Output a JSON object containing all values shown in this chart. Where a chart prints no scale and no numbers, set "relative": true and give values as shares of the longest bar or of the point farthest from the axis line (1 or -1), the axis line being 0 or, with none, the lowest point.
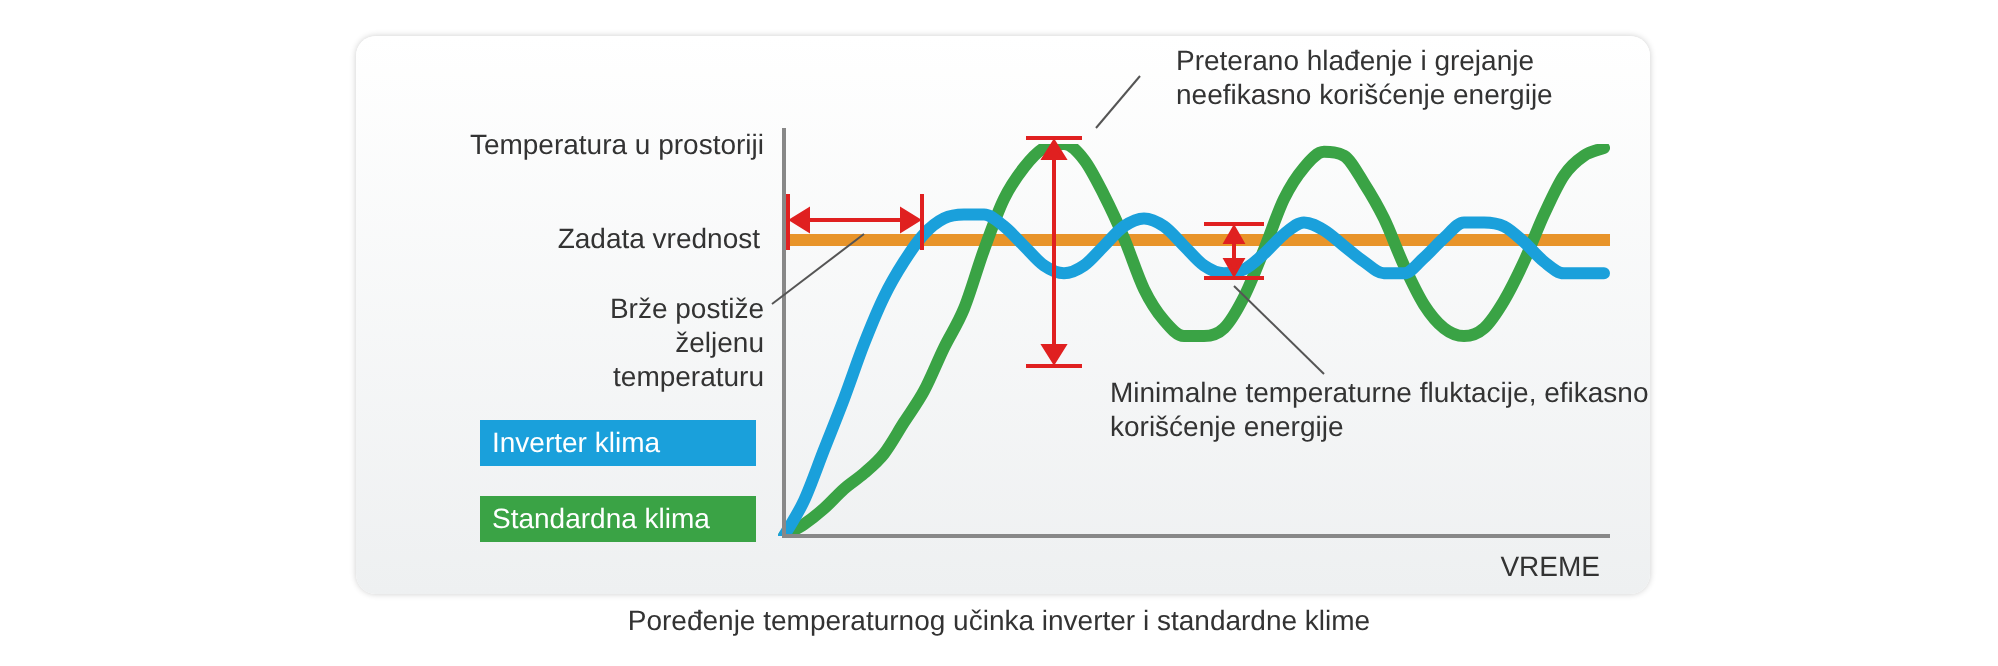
{
  "chart_data": {
    "type": "line",
    "title": "Poređenje temperaturnog učinka inverter i standardne klime",
    "ylabel": "Temperatura u prostoriji",
    "xlabel": "VREME",
    "relative": true,
    "legend": "left",
    "marker": "none",
    "categories": [
      null,
      null,
      null,
      null,
      null,
      null,
      null,
      null,
      null,
      null,
      null,
      null,
      null,
      null,
      null,
      null,
      null,
      null,
      null,
      null,
      null,
      null,
      null,
      null,
      null,
      null,
      null,
      null,
      null,
      null,
      null,
      null,
      null,
      null,
      null,
      null,
      null,
      null,
      null,
      null,
      null,
      null
    ],
    "series": [
      {
        "name": "Inverter klima",
        "color": "#1aa0db",
        "values": [
          0,
          0.09,
          0.22,
          0.35,
          0.49,
          0.61,
          0.7,
          0.77,
          0.81,
          0.82,
          0.82,
          0.79,
          0.74,
          0.69,
          0.67,
          0.69,
          0.74,
          0.79,
          0.81,
          0.79,
          0.74,
          0.69,
          0.67,
          0.68,
          0.72,
          0.77,
          0.8,
          0.78,
          0.74,
          0.7,
          0.67,
          0.67,
          0.71,
          0.76,
          0.8,
          0.8,
          0.79,
          0.75,
          0.7,
          0.67,
          0.67,
          0.67
        ]
      },
      {
        "name": "Standardna klima",
        "color": "#3aa345",
        "values": [
          0,
          0.03,
          0.07,
          0.12,
          0.16,
          0.21,
          0.29,
          0.37,
          0.48,
          0.58,
          0.73,
          0.86,
          0.94,
          0.99,
          1.0,
          0.96,
          0.87,
          0.76,
          0.63,
          0.55,
          0.51,
          0.51,
          0.53,
          0.61,
          0.73,
          0.86,
          0.94,
          0.98,
          0.97,
          0.9,
          0.81,
          0.69,
          0.59,
          0.53,
          0.51,
          0.53,
          0.6,
          0.7,
          0.82,
          0.92,
          0.97,
          0.99
        ]
      }
    ],
    "ref_lines": [
      {
        "axis": "y",
        "value": 0.755,
        "label": "Zadata vrednost",
        "color": "#e8942a"
      }
    ],
    "annotations": [
      "Preterano hlađenje i grejanje neefikasno korišćenje energije",
      "Brže postiže željenu temperaturu",
      "Minimalne temperaturne fluktacije, efikasno korišćenje energije"
    ]
  }
}
